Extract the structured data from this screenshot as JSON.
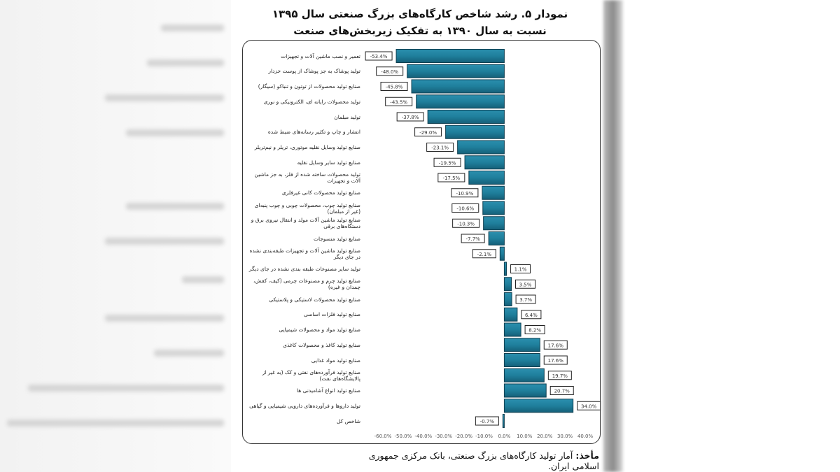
{
  "chart_data": {
    "type": "bar",
    "orientation": "horizontal",
    "title": "نمودار ۵. رشد شاخص کارگاه‌های بزرگ صنعتی سال ۱۳۹۵",
    "subtitle": "نسبت به سال ۱۳۹۰ به تفکیک زیربخش‌های صنعت",
    "xlabel": "",
    "ylabel": "",
    "xlim": [
      -60,
      40
    ],
    "x_ticks": [
      "-60.0%",
      "-50.0%",
      "-40.0%",
      "-30.0%",
      "-20.0%",
      "-10.0%",
      "0.0%",
      "10.0%",
      "20.0%",
      "30.0%",
      "40.0%"
    ],
    "grid": false,
    "bar_color": "#1f7f9c",
    "categories": [
      "تعمیر و نصب ماشین آلات و تجهیزات",
      "تولید پوشاک به جز پوشاک از پوست خزدار",
      "صنایع تولید محصولات از توتون و تنباکو (سیگار)",
      "تولید محصولات رایانه ای، الکترونیکی و نوری",
      "تولید مبلمان",
      "انتشار و چاپ و تکثیر رسانه‌های ضبط شده",
      "صنایع تولید وسایل نقلیه موتوری، تریلر و نیم‌تریلر",
      "صنایع تولید سایر وسایل نقلیه",
      "تولید محصولات ساخته شده از فلز، به جز ماشین آلات و تجهیزات",
      "صنایع تولید محصولات کانی غیرفلزی",
      "صنایع تولید چوب، محصولات چوبی و چوب پنبه‌ای (غیر از مبلمان)",
      "صنایع تولید ماشین آلات مولد و انتقال نیروی برق و دستگاه‌های برقی",
      "صنایع تولید منسوجات",
      "صنایع تولید ماشین آلات و تجهیزات طبقه‌بندی نشده در جای دیگر",
      "تولید سایر مصنوعات طبقه بندی نشده در جای دیگر",
      "صنایع تولید چرم و مصنوعات چرمی (کیف، کفش، چمدان و غیره)",
      "صنایع تولید محصولات لاستیکی و پلاستیکی",
      "صنایع تولید فلزات اساسی",
      "صنایع تولید مواد و محصولات شیمیایی",
      "صنایع تولید کاغذ و محصولات کاغذی",
      "صنایع تولید مواد غذایی",
      "صنایع تولید فرآورده‌های نفتی و کک (به غیر از پالایشگاه‌های نفت)",
      "صنایع تولید انواع آشامیدنی ها",
      "تولید داروها و فرآورده‌های دارویی شیمیایی و گیاهی",
      "شاخص کل"
    ],
    "values": [
      -53.4,
      -48.0,
      -45.8,
      -43.5,
      -37.8,
      -29.0,
      -23.1,
      -19.5,
      -17.5,
      -10.9,
      -10.6,
      -10.3,
      -7.7,
      -2.1,
      1.1,
      3.5,
      3.7,
      6.4,
      8.2,
      17.6,
      17.6,
      19.7,
      20.7,
      34.0,
      -0.7
    ],
    "data_labels": [
      "-53.4%",
      "-48.0%",
      "-45.8%",
      "-43.5%",
      "-37.8%",
      "-29.0%",
      "-23.1%",
      "-19.5%",
      "-17.5%",
      "-10.9%",
      "-10.6%",
      "-10.3%",
      "-7.7%",
      "-2.1%",
      "1.1%",
      "3.5%",
      "3.7%",
      "6.4%",
      "8.2%",
      "17.6%",
      "17.6%",
      "19.7%",
      "20.7%",
      "34.0%",
      "-0.7%"
    ]
  },
  "source": {
    "label": "مأخذ:",
    "text": "آمار تولید کارگاه‌های بزرگ صنعتی، بانک مرکزی جمهوری اسلامی ایران."
  }
}
